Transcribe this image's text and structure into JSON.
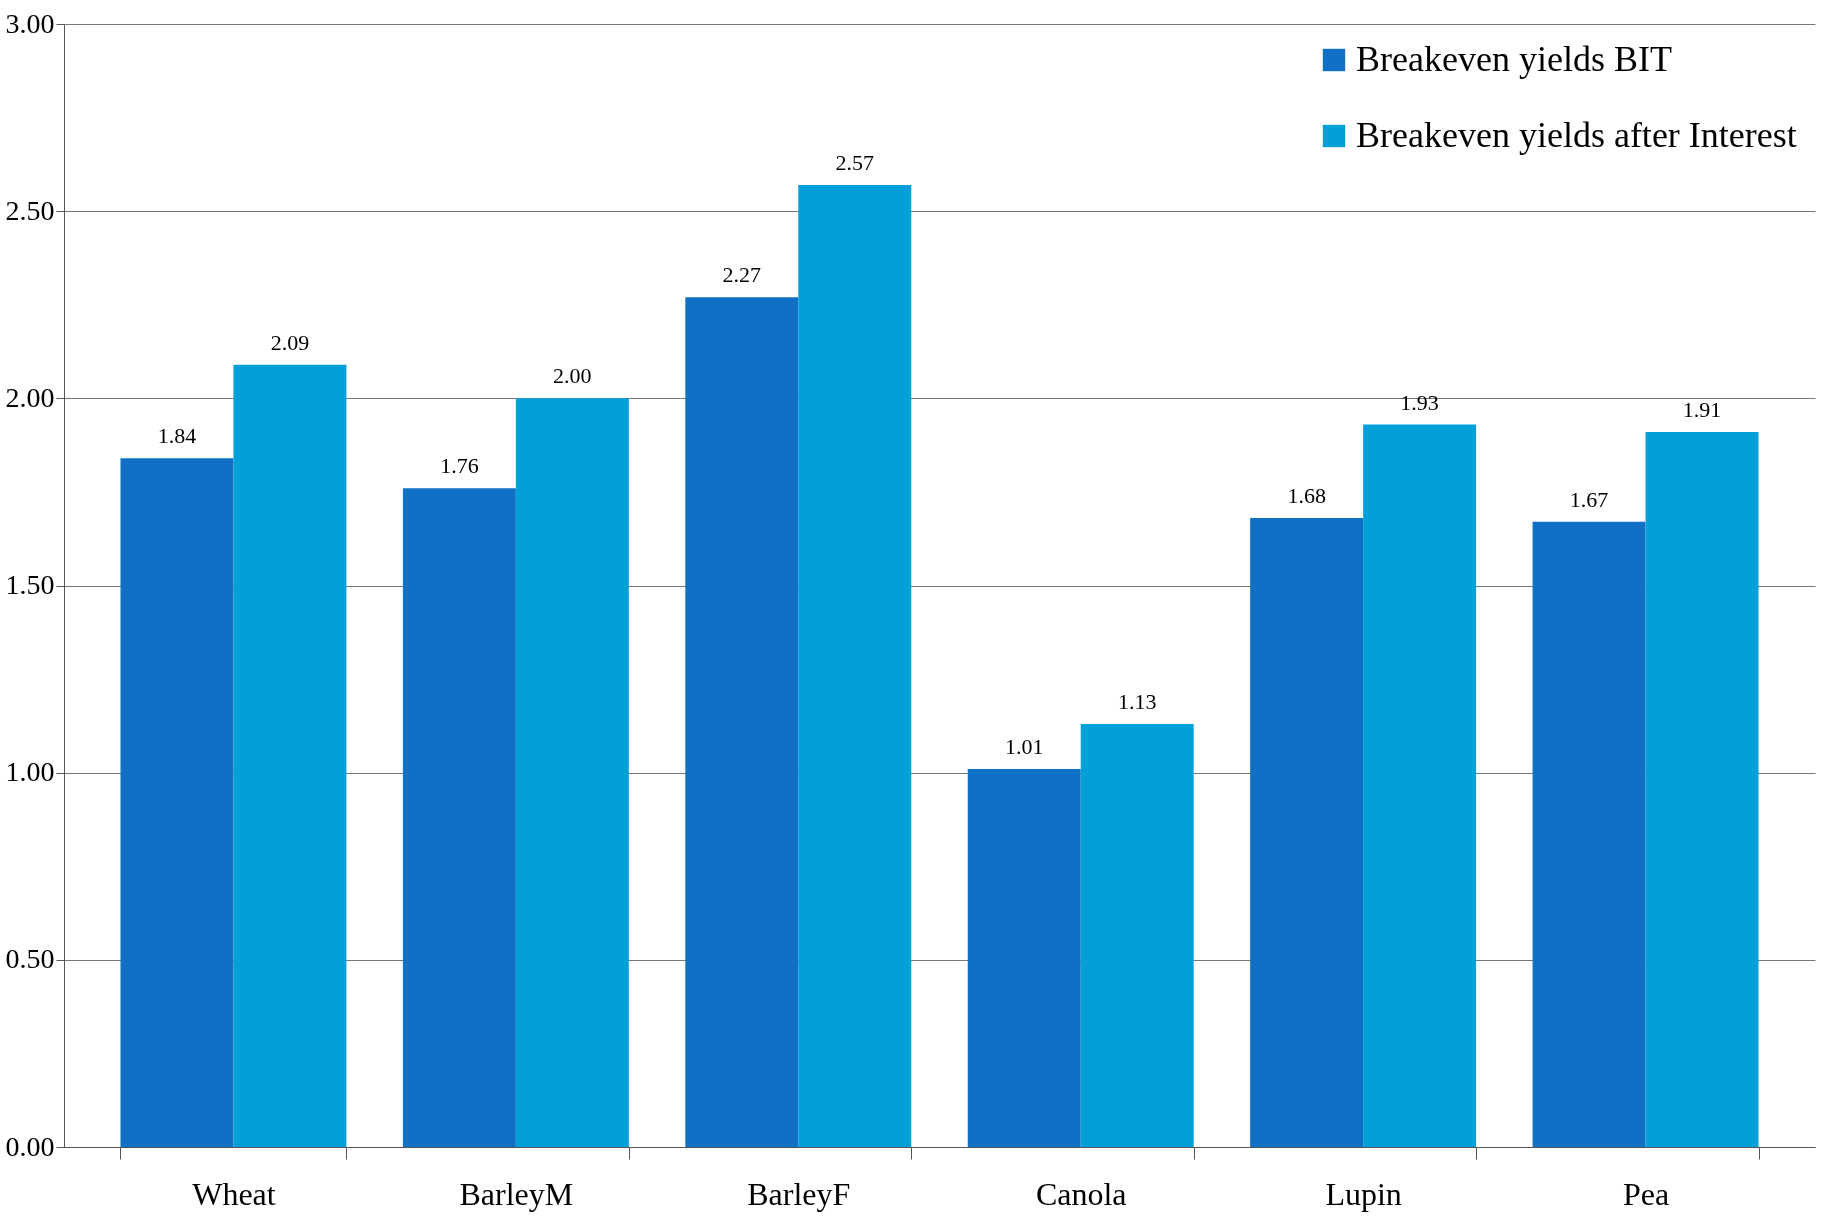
{
  "chart_data": {
    "type": "bar",
    "categories": [
      "Wheat",
      "BarleyM",
      "BarleyF",
      "Canola",
      "Lupin",
      "Pea"
    ],
    "series": [
      {
        "name": "Breakeven yields BIT",
        "color": "#1070c6",
        "values": [
          1.84,
          1.76,
          2.27,
          1.01,
          1.68,
          1.67
        ],
        "value_labels": [
          "1.84",
          "1.76",
          "2.27",
          "1.01",
          "1.68",
          "1.67"
        ]
      },
      {
        "name": "Breakeven yields after Interest",
        "color": "#029fd9",
        "values": [
          2.09,
          2.0,
          2.57,
          1.13,
          1.93,
          1.91
        ],
        "value_labels": [
          "2.09",
          "2.00",
          "2.57",
          "1.13",
          "1.93",
          "1.91"
        ]
      }
    ],
    "ylim": [
      0,
      3
    ],
    "yticks": [
      {
        "value": 0,
        "label": "0.00"
      },
      {
        "value": 0.5,
        "label": "0.50"
      },
      {
        "value": 1,
        "label": "1.00"
      },
      {
        "value": 1.5,
        "label": "1.50"
      },
      {
        "value": 2,
        "label": "2.00"
      },
      {
        "value": 2.5,
        "label": "2.50"
      },
      {
        "value": 3,
        "label": "3.00"
      }
    ],
    "grid": "y",
    "legend": "top right"
  }
}
